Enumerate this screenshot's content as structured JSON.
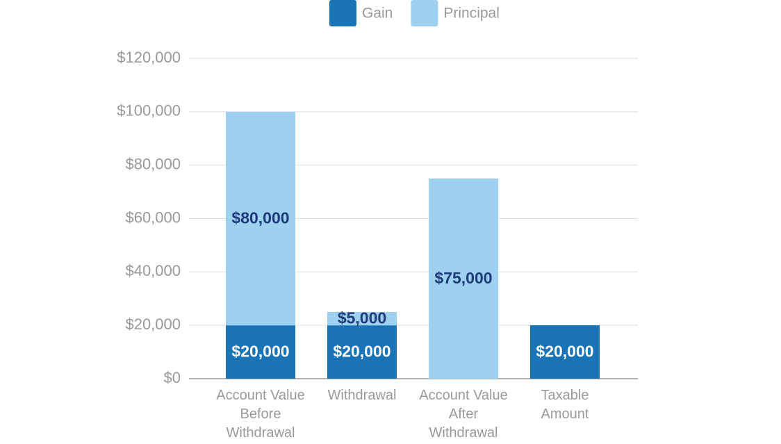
{
  "chart_data": {
    "type": "stacked_bar",
    "categories": [
      "Account Value Before Withdrawal",
      "Withdrawal",
      "Account Value After Withdrawal",
      "Taxable Amount"
    ],
    "series": [
      {
        "name": "Gain",
        "color": "#1a73b5",
        "values": [
          20000,
          20000,
          null,
          20000
        ],
        "value_labels": [
          "$20,000",
          "$20,000",
          null,
          "$20,000"
        ]
      },
      {
        "name": "Principal",
        "color": "#9ed0ef",
        "values": [
          80000,
          5000,
          75000,
          null
        ],
        "value_labels": [
          "$80,000",
          "$5,000",
          "$75,000",
          null
        ]
      }
    ],
    "ylim": [
      0,
      120000
    ],
    "yticks": [
      {
        "value": 0,
        "label": "$0"
      },
      {
        "value": 20000,
        "label": "$20,000"
      },
      {
        "value": 40000,
        "label": "$40,000"
      },
      {
        "value": 60000,
        "label": "$60,000"
      },
      {
        "value": 80000,
        "label": "$80,000"
      },
      {
        "value": 100000,
        "label": "$100,000"
      },
      {
        "value": 120000,
        "label": "$120,000"
      }
    ],
    "grid": true,
    "legend": "top"
  }
}
